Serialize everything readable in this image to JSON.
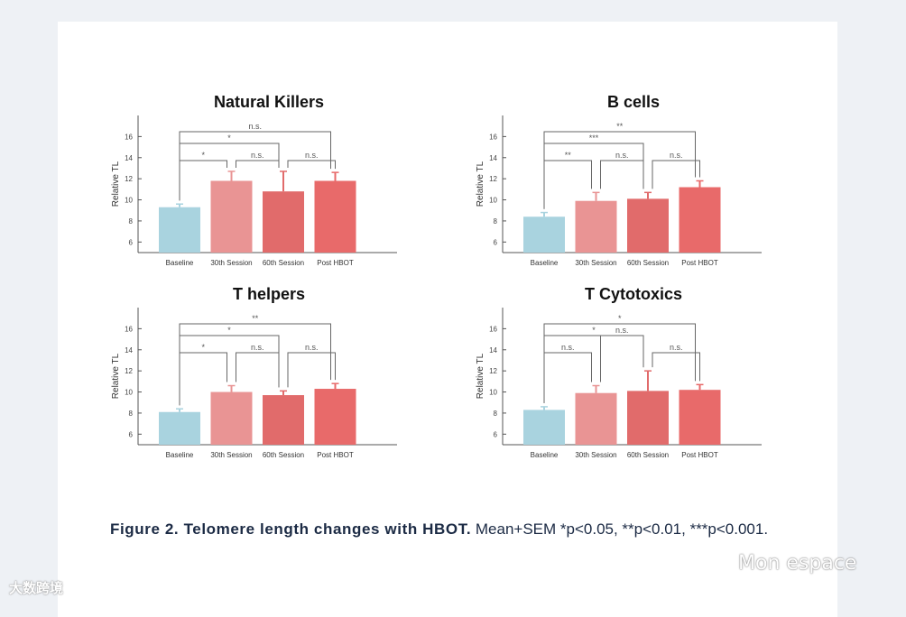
{
  "caption": {
    "bold": "Figure 2. Telomere length changes with HBOT.",
    "rest": " Mean+SEM *p<0.05, **p<0.01, ***p<0.001."
  },
  "watermarks": {
    "left": "大数跨境",
    "right": "Mon espace"
  },
  "colors": [
    "#a9d3df",
    "#e99494",
    "#e16b6b",
    "#e86a6a"
  ],
  "chart_data": [
    {
      "type": "bar",
      "title": "Natural Killers",
      "ylabel": "Relative TL",
      "ylim": [
        5,
        18
      ],
      "yticks": [
        6,
        8,
        10,
        12,
        14,
        16
      ],
      "categories": [
        "Baseline",
        "30th Session",
        "60th Session",
        "Post HBOT"
      ],
      "values": [
        9.3,
        11.8,
        10.8,
        11.8
      ],
      "errors": [
        0.3,
        0.9,
        1.9,
        0.8
      ],
      "significance": [
        {
          "from": 0,
          "to": 3,
          "level": 3,
          "label": "n.s."
        },
        {
          "from": 0,
          "to": 2,
          "level": 2,
          "label": "*"
        },
        {
          "from": 0,
          "to": 1,
          "level": 1,
          "label": "*"
        },
        {
          "from": 1,
          "to": 2,
          "level": 1,
          "label": "n.s."
        },
        {
          "from": 2,
          "to": 3,
          "level": 1,
          "label": "n.s."
        }
      ]
    },
    {
      "type": "bar",
      "title": "B cells",
      "ylabel": "Relative TL",
      "ylim": [
        5,
        18
      ],
      "yticks": [
        6,
        8,
        10,
        12,
        14,
        16
      ],
      "categories": [
        "Baseline",
        "30th Session",
        "60th Session",
        "Post HBOT"
      ],
      "values": [
        8.4,
        9.9,
        10.1,
        11.2
      ],
      "errors": [
        0.4,
        0.8,
        0.6,
        0.6
      ],
      "significance": [
        {
          "from": 0,
          "to": 3,
          "level": 3,
          "label": "**"
        },
        {
          "from": 0,
          "to": 2,
          "level": 2,
          "label": "***"
        },
        {
          "from": 0,
          "to": 1,
          "level": 1,
          "label": "**"
        },
        {
          "from": 1,
          "to": 2,
          "level": 1,
          "label": "n.s."
        },
        {
          "from": 2,
          "to": 3,
          "level": 1,
          "label": "n.s."
        }
      ]
    },
    {
      "type": "bar",
      "title": "T helpers",
      "ylabel": "Relative TL",
      "ylim": [
        5,
        18
      ],
      "yticks": [
        6,
        8,
        10,
        12,
        14,
        16
      ],
      "categories": [
        "Baseline",
        "30th Session",
        "60th Session",
        "Post HBOT"
      ],
      "values": [
        8.1,
        10.0,
        9.7,
        10.3
      ],
      "errors": [
        0.3,
        0.6,
        0.4,
        0.5
      ],
      "significance": [
        {
          "from": 0,
          "to": 3,
          "level": 3,
          "label": "**"
        },
        {
          "from": 0,
          "to": 2,
          "level": 2,
          "label": "*"
        },
        {
          "from": 0,
          "to": 1,
          "level": 1,
          "label": "*"
        },
        {
          "from": 1,
          "to": 2,
          "level": 1,
          "label": "n.s."
        },
        {
          "from": 2,
          "to": 3,
          "level": 1,
          "label": "n.s."
        }
      ]
    },
    {
      "type": "bar",
      "title": "T Cytotoxics",
      "ylabel": "Relative TL",
      "ylim": [
        5,
        18
      ],
      "yticks": [
        6,
        8,
        10,
        12,
        14,
        16
      ],
      "categories": [
        "Baseline",
        "30th Session",
        "60th Session",
        "Post HBOT"
      ],
      "values": [
        8.3,
        9.9,
        10.1,
        10.2
      ],
      "errors": [
        0.3,
        0.7,
        1.9,
        0.5
      ],
      "significance": [
        {
          "from": 0,
          "to": 3,
          "level": 3,
          "label": "*"
        },
        {
          "from": 0,
          "to": 2,
          "level": 2,
          "label": "*"
        },
        {
          "from": 0,
          "to": 1,
          "level": 1,
          "label": "n.s."
        },
        {
          "from": 1,
          "to": 2,
          "level": 2,
          "label": "n.s."
        },
        {
          "from": 2,
          "to": 3,
          "level": 1,
          "label": "n.s."
        }
      ]
    }
  ]
}
